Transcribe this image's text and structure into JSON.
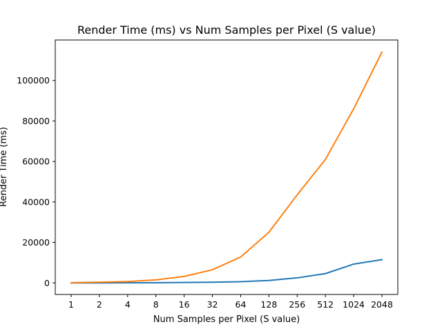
{
  "chart_data": {
    "type": "line",
    "title": "Render Time (ms) vs Num Samples per Pixel (S value)",
    "xlabel": "Num Samples per Pixel (S value)",
    "ylabel": "Render Time (ms)",
    "categories": [
      "1",
      "2",
      "4",
      "8",
      "16",
      "32",
      "64",
      "128",
      "256",
      "512",
      "1024",
      "2048"
    ],
    "yticks": [
      0,
      20000,
      40000,
      60000,
      80000,
      100000
    ],
    "ylim": [
      -5700,
      120000
    ],
    "grid": false,
    "series": [
      {
        "color": "#1f77b4",
        "values": [
          0,
          20,
          50,
          100,
          200,
          350,
          600,
          1200,
          2500,
          4600,
          9300,
          11500
        ]
      },
      {
        "color": "#ff7f0e",
        "values": [
          100,
          350,
          700,
          1500,
          3200,
          6500,
          12800,
          25000,
          43500,
          61000,
          86000,
          114000
        ]
      }
    ]
  }
}
